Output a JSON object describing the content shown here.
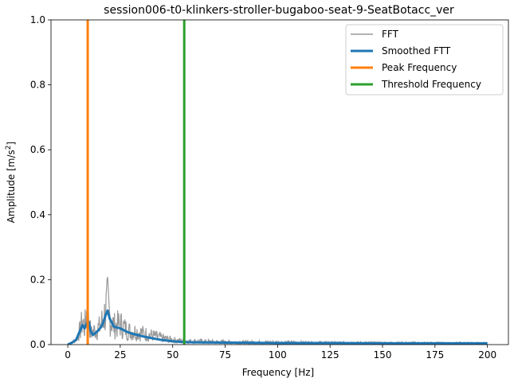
{
  "chart_data": {
    "type": "line",
    "title": "session006-t0-klinkers-stroller-bugaboo-seat-9-SeatBotacc_ver",
    "xlabel": "Frequency [Hz]",
    "ylabel_main": "Amplitude [m/s",
    "ylabel_sup": "2",
    "ylabel_end": "]",
    "xlim": [
      -8,
      210
    ],
    "ylim": [
      0,
      1.0
    ],
    "xticks": [
      0,
      25,
      50,
      75,
      100,
      125,
      150,
      175,
      200
    ],
    "xtick_labels": [
      "0",
      "25",
      "50",
      "75",
      "100",
      "125",
      "150",
      "175",
      "200"
    ],
    "yticks": [
      0.0,
      0.2,
      0.4,
      0.6,
      0.8,
      1.0
    ],
    "ytick_labels": [
      "0.0",
      "0.2",
      "0.4",
      "0.6",
      "0.8",
      "1.0"
    ],
    "grid": false,
    "legend_position": "top-right",
    "series": [
      {
        "name": "FFT",
        "color": "#999999",
        "kind": "noisy-band",
        "envelope": [
          [
            0,
            0.0
          ],
          [
            2,
            0.01
          ],
          [
            4,
            0.03
          ],
          [
            6,
            0.08
          ],
          [
            7,
            0.13
          ],
          [
            8,
            0.09
          ],
          [
            9,
            0.17
          ],
          [
            10,
            0.14
          ],
          [
            11,
            0.06
          ],
          [
            13,
            0.08
          ],
          [
            15,
            0.09
          ],
          [
            17,
            0.14
          ],
          [
            18,
            0.18
          ],
          [
            19,
            0.22
          ],
          [
            20,
            0.15
          ],
          [
            22,
            0.1
          ],
          [
            25,
            0.11
          ],
          [
            28,
            0.08
          ],
          [
            30,
            0.07
          ],
          [
            33,
            0.07
          ],
          [
            36,
            0.06
          ],
          [
            40,
            0.05
          ],
          [
            45,
            0.035
          ],
          [
            50,
            0.025
          ],
          [
            55,
            0.02
          ],
          [
            60,
            0.018
          ],
          [
            70,
            0.015
          ],
          [
            80,
            0.013
          ],
          [
            100,
            0.012
          ],
          [
            125,
            0.01
          ],
          [
            150,
            0.009
          ],
          [
            175,
            0.008
          ],
          [
            200,
            0.007
          ]
        ]
      },
      {
        "name": "Smoothed FTT",
        "color": "#1f77b4",
        "points": [
          [
            0,
            0.0
          ],
          [
            2,
            0.006
          ],
          [
            4,
            0.015
          ],
          [
            5,
            0.03
          ],
          [
            6,
            0.045
          ],
          [
            7,
            0.06
          ],
          [
            8,
            0.05
          ],
          [
            9,
            0.065
          ],
          [
            10,
            0.07
          ],
          [
            11,
            0.04
          ],
          [
            12,
            0.03
          ],
          [
            14,
            0.04
          ],
          [
            16,
            0.055
          ],
          [
            17,
            0.07
          ],
          [
            18,
            0.09
          ],
          [
            19,
            0.105
          ],
          [
            20,
            0.08
          ],
          [
            22,
            0.055
          ],
          [
            25,
            0.05
          ],
          [
            28,
            0.04
          ],
          [
            30,
            0.035
          ],
          [
            33,
            0.03
          ],
          [
            36,
            0.025
          ],
          [
            40,
            0.02
          ],
          [
            45,
            0.014
          ],
          [
            50,
            0.01
          ],
          [
            55,
            0.008
          ],
          [
            60,
            0.007
          ],
          [
            75,
            0.006
          ],
          [
            100,
            0.005
          ],
          [
            125,
            0.005
          ],
          [
            150,
            0.004
          ],
          [
            175,
            0.004
          ],
          [
            200,
            0.004
          ]
        ]
      },
      {
        "name": "Peak Frequency",
        "color": "#ff7f0e",
        "x": 9.5
      },
      {
        "name": "Threshold Frequency",
        "color": "#2ca02c",
        "x": 55.5
      }
    ]
  }
}
